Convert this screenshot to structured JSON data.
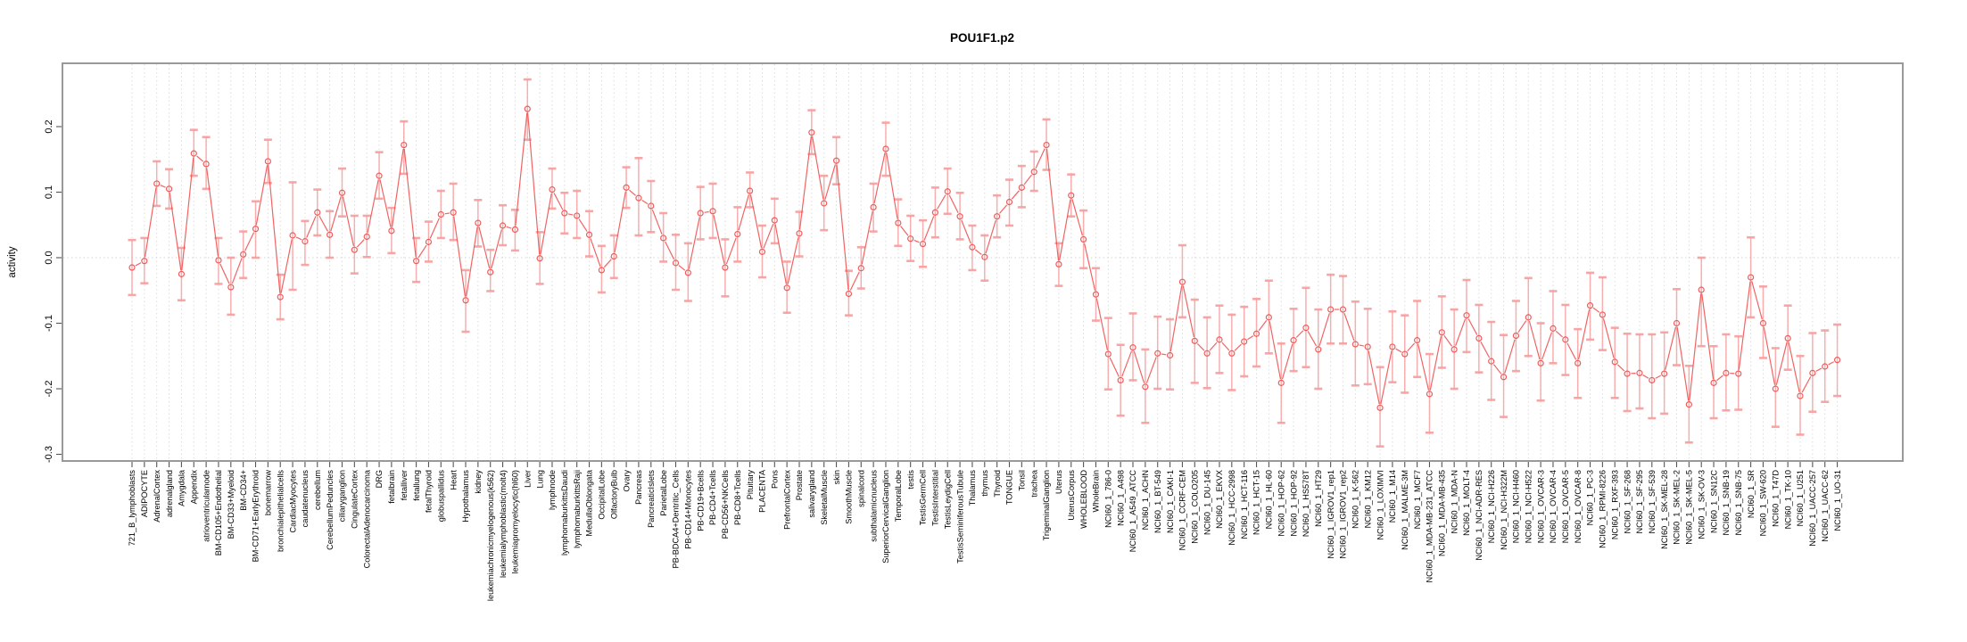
{
  "chart_data": {
    "type": "line",
    "title": "POU1F1.p2",
    "ylabel": "activity",
    "xlabel": "",
    "ylim": [
      -0.31,
      0.297
    ],
    "yticks": [
      0.2,
      0.1,
      0.0,
      -0.1,
      -0.2,
      -0.3
    ],
    "ytick_labels": [
      "0.2",
      "0.1",
      "0.0",
      "-0.1",
      "-0.2",
      "-0.3"
    ],
    "grid": "vertical dotted gridline per category; horizontal dotted line at 0 only",
    "legend_position": "none",
    "point_style": "open circle with asymmetric error bars",
    "colors": {
      "series": "#ef4f4f",
      "error_bar": "#f79d9d",
      "grid": "#dcdcdc",
      "border": "#999999",
      "text": "#000000"
    },
    "categories": [
      "721_B_lymphoblasts",
      "ADIPOCYTE",
      "AdrenalCortex",
      "adrenalgland",
      "Amygdala",
      "Appendix",
      "atrioventricularnode",
      "BM-CD105+Endothelial",
      "BM-CD33+Myeloid",
      "BM-CD34+",
      "BM-CD71+EarlyErythroid",
      "bonemarrow",
      "bronchialepithelialcells",
      "CardiacMyocytes",
      "caudatenucleus",
      "cerebellum",
      "CerebellumPeduncles",
      "ciliaryganglion",
      "CingulateCortex",
      "ColorectalAdenocarcinoma",
      "DRG",
      "fetalbrain",
      "fetalliver",
      "fetallung",
      "fetalThyroid",
      "globuspallidus",
      "Heart",
      "Hypothalamus",
      "kidney",
      "leukemiachronicmyelogenous(k562)",
      "leukemialymphoblastic(molt4)",
      "leukemiapromyelocytic(hl60)",
      "Liver",
      "Lung",
      "lymphnode",
      "lymphomaburkittsDaudi",
      "lymphomaburkittsRaji",
      "MedullaOblongata",
      "OccipitalLobe",
      "OlfactoryBulb",
      "Ovary",
      "Pancreas",
      "PancreaticIslets",
      "ParietalLobe",
      "PB-BDCA4+Dentritic_Cells",
      "PB-CD14+Monocytes",
      "PB-CD19+Bcells",
      "PB-CD4+Tcells",
      "PB-CD56+NKCells",
      "PB-CD8+Tcells",
      "Pituitary",
      "PLACENTA",
      "Pons",
      "PrefrontalCortex",
      "Prostate",
      "salivarygland",
      "SkeletalMuscle",
      "skin",
      "SmoothMuscle",
      "spinalcord",
      "subthalamicnucleus",
      "SuperiorCervicalGanglion",
      "TemporalLobe",
      "testis",
      "TestisGermCell",
      "TestisInterstitial",
      "TestisLeydigCell",
      "TestisSeminiferousTubule",
      "Thalamus",
      "thymus",
      "Thyroid",
      "TONGUE",
      "Tonsil",
      "trachea",
      "TrigeminalGanglion",
      "Uterus",
      "UterusCorpus",
      "WHOLEBLOOD",
      "WholeBrain",
      "NCI60_1_786-0",
      "NCI60_1_A498",
      "NCI60_1_A549_ATCC",
      "NCI60_1_ACHN",
      "NCI60_1_BT-549",
      "NCI60_1_CAKI-1",
      "NCI60_1_CCRF-CEM",
      "NCI60_1_COLO205",
      "NCI60_1_DU-145",
      "NCI60_1_EKVX",
      "NCI60_1_HCC-2998",
      "NCI60_1_HCT-116",
      "NCI60_1_HCT-15",
      "NCI60_1_HL-60",
      "NCI60_1_HOP-62",
      "NCI60_1_HOP-92",
      "NCI60_1_HS578T",
      "NCI60_1_HT29",
      "NCI60_1_IGROV1_rep1",
      "NCI60_1_IGROV1_rep2",
      "NCI60_1_K-562",
      "NCI60_1_KM12",
      "NCI60_1_LOXIMVI",
      "NCI60_1_M14",
      "NCI60_1_MALME-3M",
      "NCI60_1_MCF7",
      "NCI60_1_MDA-MB-231_ATCC",
      "NCI60_1_MDA-MB-435",
      "NCI60_1_MDA-N",
      "NCI60_1_MOLT-4",
      "NCI60_1_NCI-ADR-RES",
      "NCI60_1_NCI-H226",
      "NCI60_1_NCI-H322M",
      "NCI60_1_NCI-H460",
      "NCI60_1_NCI-H522",
      "NCI60_1_OVCAR-3",
      "NCI60_1_OVCAR-4",
      "NCI60_1_OVCAR-5",
      "NCI60_1_OVCAR-8",
      "NCI60_1_PC-3",
      "NCI60_1_RPMI-8226",
      "NCI60_1_RXF-393",
      "NCI60_1_SF-268",
      "NCI60_1_SF-295",
      "NCI60_1_SF-539",
      "NCI60_1_SK-MEL-28",
      "NCI60_1_SK-MEL-2",
      "NCI60_1_SK-MEL-5",
      "NCI60_1_SK-OV-3",
      "NCI60_1_SN12C",
      "NCI60_1_SNB-19",
      "NCI60_1_SNB-75",
      "NCI60_1_SR",
      "NCI60_1_SW-620",
      "NCI60_1_T47D",
      "NCI60_1_TK-10",
      "NCI60_1_U251",
      "NCI60_1_UACC-257",
      "NCI60_1_UACC-62",
      "NCI60_1_UO-31"
    ],
    "values": [
      -0.015,
      -0.005,
      0.113,
      0.105,
      -0.025,
      0.159,
      0.143,
      -0.004,
      -0.045,
      0.005,
      0.044,
      0.147,
      -0.06,
      0.034,
      0.025,
      0.069,
      0.035,
      0.099,
      0.012,
      0.032,
      0.125,
      0.041,
      0.172,
      -0.005,
      0.024,
      0.066,
      0.069,
      -0.065,
      0.053,
      -0.022,
      0.049,
      0.043,
      0.227,
      -0.001,
      0.104,
      0.068,
      0.064,
      0.035,
      -0.019,
      0.002,
      0.107,
      0.091,
      0.079,
      0.03,
      -0.008,
      -0.023,
      0.068,
      0.071,
      -0.015,
      0.036,
      0.102,
      0.009,
      0.057,
      -0.046,
      0.037,
      0.191,
      0.083,
      0.148,
      -0.055,
      -0.016,
      0.077,
      0.166,
      0.053,
      0.029,
      0.021,
      0.069,
      0.101,
      0.063,
      0.016,
      0.001,
      0.063,
      0.085,
      0.107,
      0.131,
      0.172,
      -0.01,
      0.095,
      0.028,
      -0.056,
      -0.147,
      -0.187,
      -0.137,
      -0.197,
      -0.146,
      -0.149,
      -0.037,
      -0.127,
      -0.146,
      -0.125,
      -0.146,
      -0.128,
      -0.116,
      -0.091,
      -0.191,
      -0.126,
      -0.107,
      -0.14,
      -0.079,
      -0.079,
      -0.132,
      -0.136,
      -0.229,
      -0.136,
      -0.147,
      -0.126,
      -0.208,
      -0.114,
      -0.14,
      -0.088,
      -0.123,
      -0.158,
      -0.182,
      -0.119,
      -0.091,
      -0.161,
      -0.108,
      -0.125,
      -0.161,
      -0.073,
      -0.087,
      -0.159,
      -0.177,
      -0.176,
      -0.187,
      -0.177,
      -0.1,
      -0.224,
      -0.049,
      -0.191,
      -0.176,
      -0.177,
      -0.03,
      -0.1,
      -0.2,
      -0.123,
      -0.211,
      -0.176,
      -0.166,
      -0.156
    ],
    "err_hi": [
      0.027,
      0.03,
      0.147,
      0.135,
      0.015,
      0.195,
      0.184,
      0.03,
      0.0,
      0.04,
      0.086,
      0.18,
      -0.026,
      0.115,
      0.056,
      0.104,
      0.071,
      0.136,
      0.064,
      0.064,
      0.161,
      0.076,
      0.208,
      0.03,
      0.055,
      0.102,
      0.113,
      -0.019,
      0.088,
      0.012,
      0.08,
      0.073,
      0.272,
      0.039,
      0.136,
      0.099,
      0.102,
      0.071,
      0.018,
      0.034,
      0.138,
      0.152,
      0.117,
      0.068,
      0.035,
      0.022,
      0.108,
      0.113,
      0.028,
      0.077,
      0.13,
      0.049,
      0.09,
      -0.006,
      0.07,
      0.225,
      0.125,
      0.184,
      -0.02,
      0.016,
      0.113,
      0.206,
      0.089,
      0.064,
      0.057,
      0.107,
      0.136,
      0.099,
      0.049,
      0.034,
      0.095,
      0.119,
      0.14,
      0.162,
      0.211,
      0.022,
      0.127,
      0.072,
      -0.016,
      -0.092,
      -0.133,
      -0.085,
      -0.14,
      -0.09,
      -0.094,
      0.019,
      -0.064,
      -0.091,
      -0.073,
      -0.087,
      -0.075,
      -0.063,
      -0.035,
      -0.131,
      -0.078,
      -0.046,
      -0.079,
      -0.026,
      -0.028,
      -0.067,
      -0.078,
      -0.167,
      -0.082,
      -0.088,
      -0.066,
      -0.147,
      -0.059,
      -0.079,
      -0.034,
      -0.072,
      -0.098,
      -0.118,
      -0.066,
      -0.031,
      -0.1,
      -0.051,
      -0.072,
      -0.109,
      -0.023,
      -0.03,
      -0.107,
      -0.116,
      -0.117,
      -0.117,
      -0.114,
      -0.048,
      -0.165,
      0.0,
      -0.135,
      -0.117,
      -0.12,
      0.031,
      -0.044,
      -0.138,
      -0.073,
      -0.15,
      -0.115,
      -0.111,
      -0.102
    ],
    "err_lo": [
      -0.057,
      -0.039,
      0.079,
      0.075,
      -0.065,
      0.125,
      0.105,
      -0.04,
      -0.087,
      -0.031,
      0.0,
      0.114,
      -0.094,
      -0.049,
      -0.011,
      0.034,
      0.0,
      0.063,
      -0.024,
      0.001,
      0.09,
      0.007,
      0.128,
      -0.037,
      -0.006,
      0.03,
      0.027,
      -0.113,
      0.017,
      -0.051,
      0.019,
      0.011,
      0.18,
      -0.04,
      0.075,
      0.037,
      0.03,
      0.002,
      -0.053,
      -0.031,
      0.076,
      0.034,
      0.039,
      -0.006,
      -0.049,
      -0.066,
      0.028,
      0.03,
      -0.059,
      -0.006,
      0.077,
      -0.03,
      0.022,
      -0.084,
      0.002,
      0.158,
      0.042,
      0.112,
      -0.088,
      -0.047,
      0.04,
      0.125,
      0.018,
      -0.005,
      -0.014,
      0.031,
      0.067,
      0.028,
      -0.019,
      -0.035,
      0.031,
      0.049,
      0.077,
      0.102,
      0.134,
      -0.043,
      0.063,
      -0.016,
      -0.096,
      -0.201,
      -0.241,
      -0.187,
      -0.252,
      -0.2,
      -0.201,
      -0.091,
      -0.191,
      -0.199,
      -0.176,
      -0.202,
      -0.181,
      -0.166,
      -0.146,
      -0.252,
      -0.173,
      -0.167,
      -0.2,
      -0.131,
      -0.131,
      -0.195,
      -0.193,
      -0.288,
      -0.19,
      -0.206,
      -0.182,
      -0.267,
      -0.168,
      -0.2,
      -0.144,
      -0.175,
      -0.217,
      -0.243,
      -0.173,
      -0.15,
      -0.218,
      -0.161,
      -0.179,
      -0.214,
      -0.125,
      -0.141,
      -0.214,
      -0.234,
      -0.23,
      -0.245,
      -0.238,
      -0.164,
      -0.282,
      -0.135,
      -0.245,
      -0.233,
      -0.232,
      -0.091,
      -0.153,
      -0.258,
      -0.171,
      -0.27,
      -0.235,
      -0.22,
      -0.211
    ]
  }
}
